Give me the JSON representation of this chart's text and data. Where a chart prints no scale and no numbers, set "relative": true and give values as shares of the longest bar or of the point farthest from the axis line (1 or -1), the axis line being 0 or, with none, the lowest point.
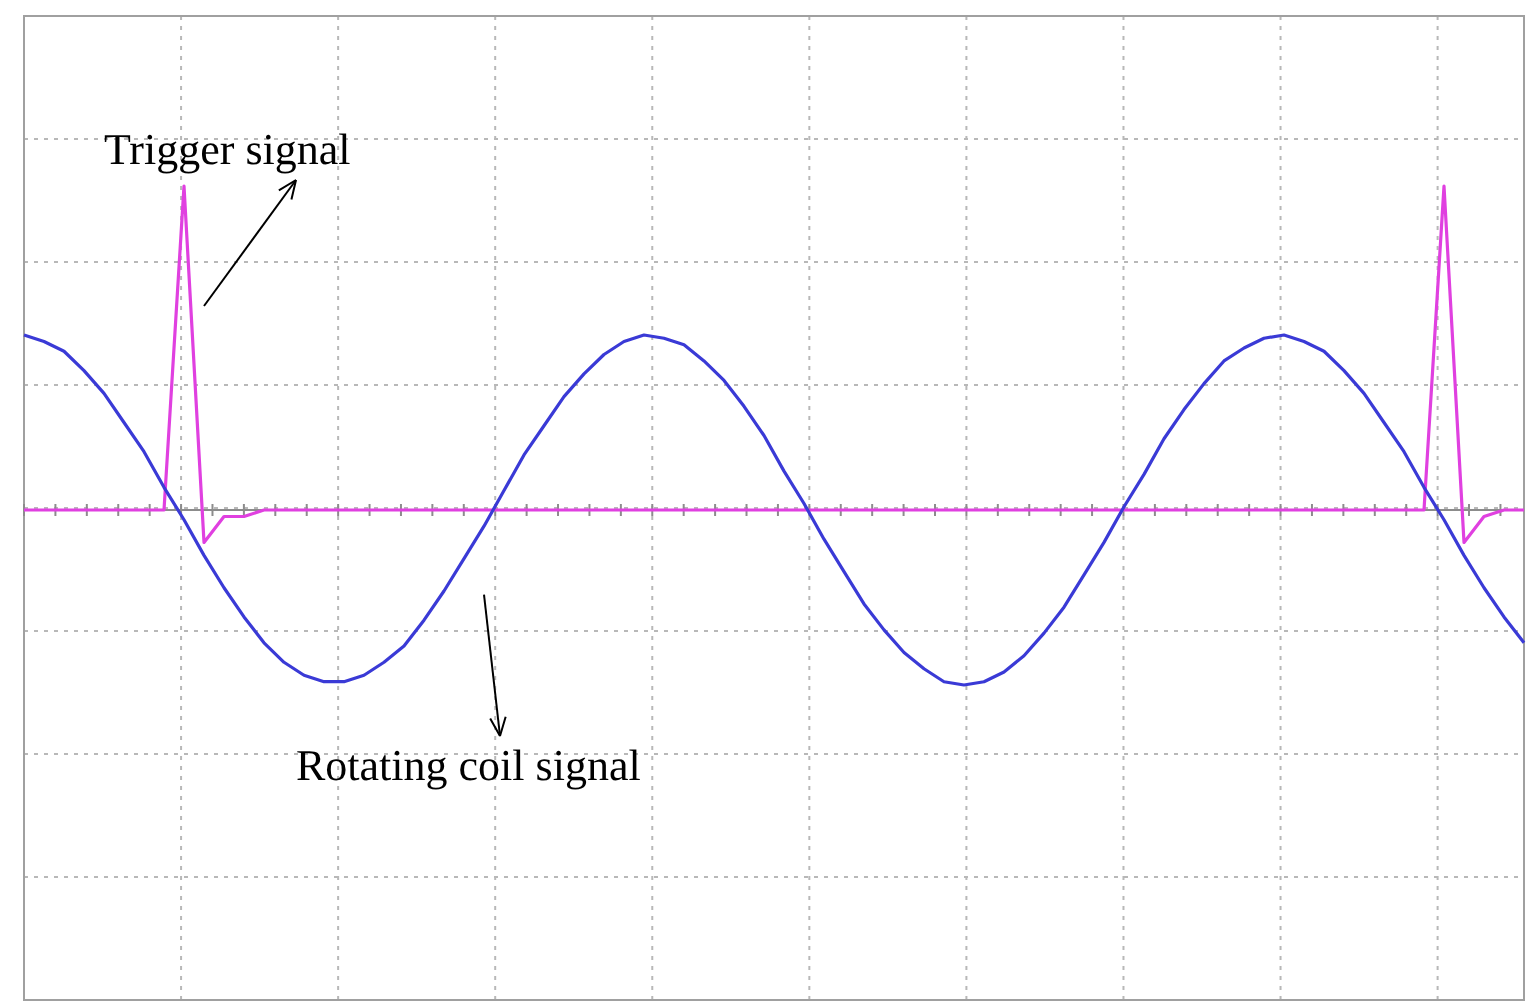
{
  "chart_data": {
    "type": "line",
    "relative": true,
    "grid": true,
    "marker": "none",
    "line_style": "solid",
    "legend": false,
    "categories": [
      null,
      null,
      null,
      null,
      null,
      null,
      null,
      null,
      null,
      null,
      null,
      null,
      null,
      null,
      null,
      null,
      null,
      null,
      null,
      null,
      null,
      null,
      null,
      null,
      null,
      null,
      null,
      null,
      null,
      null,
      null,
      null,
      null,
      null,
      null,
      null,
      null,
      null,
      null,
      null,
      null,
      null,
      null,
      null,
      null,
      null,
      null,
      null,
      null,
      null,
      null,
      null,
      null,
      null,
      null,
      null,
      null,
      null,
      null,
      null,
      null,
      null,
      null,
      null,
      null,
      null,
      null,
      null,
      null,
      null,
      null,
      null,
      null,
      null,
      null,
      null
    ],
    "series": [
      {
        "name": "Rotating coil signal",
        "color": "#3a3ad6",
        "values": [
          0.54,
          0.52,
          0.49,
          0.43,
          0.36,
          0.27,
          0.18,
          0.07,
          -0.03,
          -0.14,
          -0.24,
          -0.33,
          -0.41,
          -0.47,
          -0.51,
          -0.53,
          -0.53,
          -0.51,
          -0.47,
          -0.42,
          -0.34,
          -0.25,
          -0.15,
          -0.05,
          0.06,
          0.17,
          0.26,
          0.35,
          0.42,
          0.48,
          0.52,
          0.54,
          0.53,
          0.51,
          0.46,
          0.4,
          0.32,
          0.23,
          0.12,
          0.02,
          -0.09,
          -0.19,
          -0.29,
          -0.37,
          -0.44,
          -0.49,
          -0.53,
          -0.54,
          -0.53,
          -0.5,
          -0.45,
          -0.38,
          -0.3,
          -0.2,
          -0.1,
          0.01,
          0.11,
          0.22,
          0.31,
          0.39,
          0.46,
          0.5,
          0.53,
          0.54,
          0.52,
          0.49,
          0.43,
          0.36,
          0.27,
          0.18,
          0.07,
          -0.03,
          -0.14,
          -0.24,
          -0.33,
          -0.41
        ]
      },
      {
        "name": "Trigger signal",
        "color": "#e040e0",
        "values": [
          0,
          0,
          0,
          0,
          0,
          0,
          0,
          0,
          1,
          -0.1,
          -0.02,
          -0.02,
          0,
          0,
          0,
          0,
          0,
          0,
          0,
          0,
          0,
          0,
          0,
          0,
          0,
          0,
          0,
          0,
          0,
          0,
          0,
          0,
          0,
          0,
          0,
          0,
          0,
          0,
          0,
          0,
          0,
          0,
          0,
          0,
          0,
          0,
          0,
          0,
          0,
          0,
          0,
          0,
          0,
          0,
          0,
          0,
          0,
          0,
          0,
          0,
          0,
          0,
          0,
          0,
          0,
          0,
          0,
          0,
          0,
          0,
          0,
          1,
          -0.1,
          -0.02,
          0,
          0
        ]
      }
    ]
  }
}
